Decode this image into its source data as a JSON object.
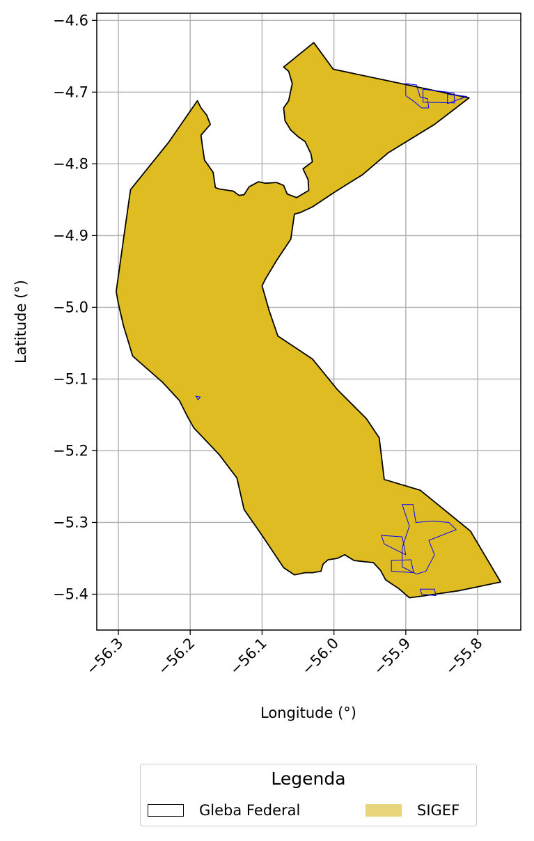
{
  "axes": {
    "xlabel": "Longitude (°)",
    "ylabel": "Latitude (°)",
    "xlim": [
      -56.33,
      -55.74
    ],
    "ylim": [
      -5.45,
      -4.59
    ],
    "x_ticks": [
      -56.3,
      -56.2,
      -56.1,
      -56.0,
      -55.9,
      -55.8
    ],
    "x_tick_labels": [
      "−56.3",
      "−56.2",
      "−56.1",
      "−56.0",
      "−55.9",
      "−55.8"
    ],
    "y_ticks": [
      -4.6,
      -4.7,
      -4.8,
      -4.9,
      -5.0,
      -5.1,
      -5.2,
      -5.3,
      -5.4
    ],
    "y_tick_labels": [
      "−4.6",
      "−4.7",
      "−4.8",
      "−4.9",
      "−5.0",
      "−5.1",
      "−5.2",
      "−5.3",
      "−5.4"
    ],
    "grid": true
  },
  "legend": {
    "title": "Legenda",
    "placement": "below-center",
    "entries": [
      {
        "label": "Gleba Federal",
        "style": "outline",
        "color": "#000000"
      },
      {
        "label": "SIGEF",
        "style": "fill",
        "color": "#e8d67c"
      }
    ]
  },
  "colors": {
    "gleba_outline": "#000000",
    "area_fill": "#dfbd22",
    "sigef_parcel_outline": "#0000ff",
    "grid": "#b0b0b0"
  },
  "chart_data": {
    "type": "map",
    "xlabel": "Longitude (°)",
    "ylabel": "Latitude (°)",
    "xlim": [
      -56.33,
      -55.74
    ],
    "ylim": [
      -5.45,
      -4.59
    ],
    "grid": true,
    "layers": [
      {
        "name": "Gleba Federal",
        "kind": "polygon-outline",
        "coords": [
          [
            -56.028,
            -4.631
          ],
          [
            -56.001,
            -4.668
          ],
          [
            -55.812,
            -4.708
          ],
          [
            -55.86,
            -4.745
          ],
          [
            -55.925,
            -4.785
          ],
          [
            -55.96,
            -4.815
          ],
          [
            -56.0,
            -4.84
          ],
          [
            -56.03,
            -4.86
          ],
          [
            -56.047,
            -4.868
          ],
          [
            -56.055,
            -4.87
          ],
          [
            -56.06,
            -4.905
          ],
          [
            -56.08,
            -4.935
          ],
          [
            -56.095,
            -4.96
          ],
          [
            -56.1,
            -4.97
          ],
          [
            -56.09,
            -5.005
          ],
          [
            -56.078,
            -5.04
          ],
          [
            -56.03,
            -5.072
          ],
          [
            -55.995,
            -5.115
          ],
          [
            -55.955,
            -5.155
          ],
          [
            -55.937,
            -5.182
          ],
          [
            -55.93,
            -5.24
          ],
          [
            -55.88,
            -5.255
          ],
          [
            -55.81,
            -5.312
          ],
          [
            -55.768,
            -5.383
          ],
          [
            -55.825,
            -5.395
          ],
          [
            -55.88,
            -5.403
          ],
          [
            -55.895,
            -5.405
          ],
          [
            -55.91,
            -5.392
          ],
          [
            -55.928,
            -5.38
          ],
          [
            -55.935,
            -5.367
          ],
          [
            -55.945,
            -5.356
          ],
          [
            -55.972,
            -5.353
          ],
          [
            -55.985,
            -5.345
          ],
          [
            -55.995,
            -5.35
          ],
          [
            -56.008,
            -5.352
          ],
          [
            -56.015,
            -5.358
          ],
          [
            -56.018,
            -5.368
          ],
          [
            -56.03,
            -5.37
          ],
          [
            -56.04,
            -5.37
          ],
          [
            -56.055,
            -5.373
          ],
          [
            -56.07,
            -5.363
          ],
          [
            -56.1,
            -5.318
          ],
          [
            -56.125,
            -5.282
          ],
          [
            -56.135,
            -5.238
          ],
          [
            -56.16,
            -5.205
          ],
          [
            -56.195,
            -5.168
          ],
          [
            -56.205,
            -5.15
          ],
          [
            -56.215,
            -5.13
          ],
          [
            -56.238,
            -5.105
          ],
          [
            -56.28,
            -5.068
          ],
          [
            -56.293,
            -5.025
          ],
          [
            -56.3,
            -4.995
          ],
          [
            -56.303,
            -4.978
          ],
          [
            -56.297,
            -4.935
          ],
          [
            -56.29,
            -4.885
          ],
          [
            -56.283,
            -4.836
          ],
          [
            -56.23,
            -4.77
          ],
          [
            -56.19,
            -4.712
          ],
          [
            -56.185,
            -4.722
          ],
          [
            -56.177,
            -4.732
          ],
          [
            -56.172,
            -4.745
          ],
          [
            -56.185,
            -4.76
          ],
          [
            -56.183,
            -4.775
          ],
          [
            -56.18,
            -4.795
          ],
          [
            -56.175,
            -4.802
          ],
          [
            -56.168,
            -4.812
          ],
          [
            -56.165,
            -4.833
          ],
          [
            -56.16,
            -4.835
          ],
          [
            -56.14,
            -4.838
          ],
          [
            -56.132,
            -4.844
          ],
          [
            -56.125,
            -4.843
          ],
          [
            -56.118,
            -4.832
          ],
          [
            -56.105,
            -4.825
          ],
          [
            -56.095,
            -4.827
          ],
          [
            -56.08,
            -4.826
          ],
          [
            -56.07,
            -4.83
          ],
          [
            -56.065,
            -4.842
          ],
          [
            -56.052,
            -4.847
          ],
          [
            -56.035,
            -4.837
          ],
          [
            -56.036,
            -4.822
          ],
          [
            -56.043,
            -4.807
          ],
          [
            -56.03,
            -4.797
          ],
          [
            -56.032,
            -4.786
          ],
          [
            -56.04,
            -4.769
          ],
          [
            -56.05,
            -4.762
          ],
          [
            -56.06,
            -4.753
          ],
          [
            -56.068,
            -4.74
          ],
          [
            -56.07,
            -4.722
          ],
          [
            -56.063,
            -4.712
          ],
          [
            -56.058,
            -4.688
          ],
          [
            -56.063,
            -4.671
          ],
          [
            -56.07,
            -4.665
          ]
        ]
      },
      {
        "name": "SIGEF",
        "kind": "parcels",
        "parcels": [
          [
            [
              -55.9,
              -4.688
            ],
            [
              -55.885,
              -4.69
            ],
            [
              -55.88,
              -4.707
            ],
            [
              -55.87,
              -4.709
            ],
            [
              -55.868,
              -4.722
            ],
            [
              -55.878,
              -4.722
            ],
            [
              -55.89,
              -4.712
            ],
            [
              -55.9,
              -4.705
            ]
          ],
          [
            [
              -55.876,
              -4.696
            ],
            [
              -55.833,
              -4.701
            ],
            [
              -55.832,
              -4.715
            ],
            [
              -55.876,
              -4.714
            ]
          ],
          [
            [
              -55.842,
              -4.703
            ],
            [
              -55.815,
              -4.706
            ],
            [
              -55.842,
              -4.716
            ]
          ],
          [
            [
              -56.192,
              -5.124
            ],
            [
              -56.186,
              -5.125
            ],
            [
              -56.189,
              -5.129
            ]
          ],
          [
            [
              -55.905,
              -5.275
            ],
            [
              -55.89,
              -5.275
            ],
            [
              -55.886,
              -5.3
            ],
            [
              -55.862,
              -5.298
            ],
            [
              -55.84,
              -5.3
            ],
            [
              -55.83,
              -5.31
            ],
            [
              -55.868,
              -5.325
            ],
            [
              -55.86,
              -5.345
            ],
            [
              -55.872,
              -5.368
            ],
            [
              -55.885,
              -5.372
            ],
            [
              -55.905,
              -5.362
            ],
            [
              -55.905,
              -5.335
            ],
            [
              -55.895,
              -5.305
            ]
          ],
          [
            [
              -55.934,
              -5.318
            ],
            [
              -55.905,
              -5.32
            ],
            [
              -55.9,
              -5.345
            ],
            [
              -55.93,
              -5.33
            ]
          ],
          [
            [
              -55.92,
              -5.353
            ],
            [
              -55.893,
              -5.352
            ],
            [
              -55.889,
              -5.37
            ],
            [
              -55.92,
              -5.368
            ]
          ],
          [
            [
              -55.88,
              -5.393
            ],
            [
              -55.86,
              -5.393
            ],
            [
              -55.858,
              -5.402
            ],
            [
              -55.878,
              -5.4
            ]
          ]
        ]
      }
    ]
  }
}
